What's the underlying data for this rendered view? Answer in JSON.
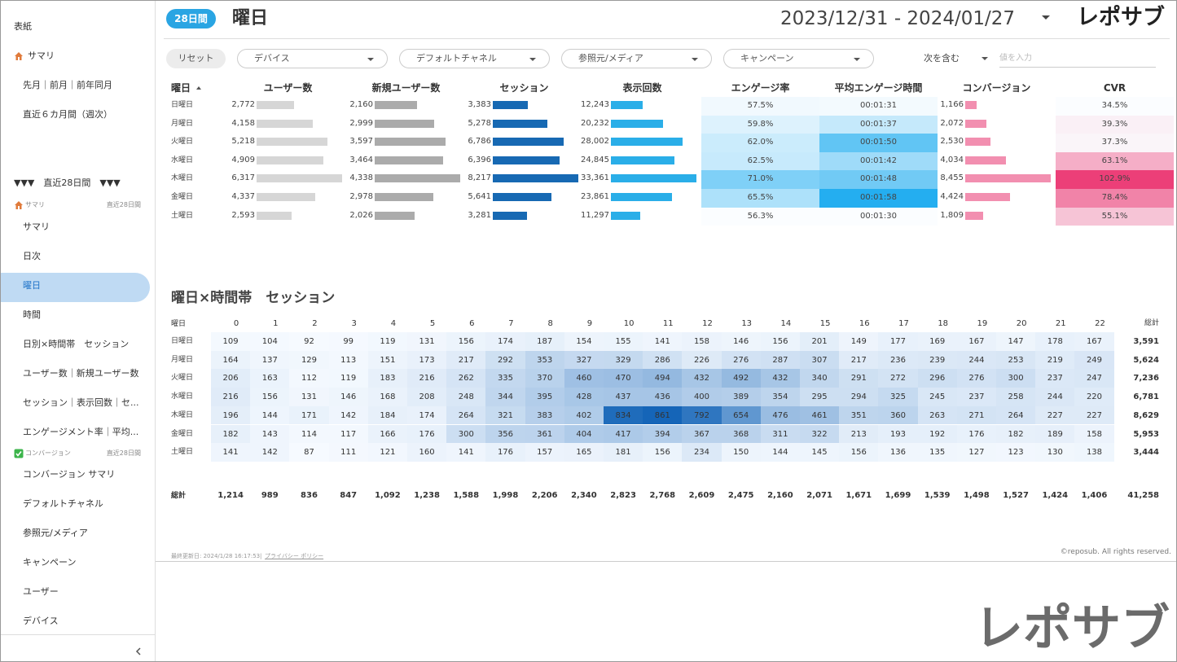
{
  "sidebar": {
    "top_items": [
      "表紙",
      "サマリ",
      "先月｜前月｜前年同月",
      "直近６カ月間（週次）"
    ],
    "range_header": "▼▼▼　直近28日間　▼▼▼",
    "sections": [
      {
        "title": "サマリ",
        "period": "直近28日間",
        "items": [
          "サマリ",
          "日次",
          {
            "label": "曜日",
            "active": true
          },
          "時間",
          "日別×時間帯　セッション",
          "ユーザー数｜新規ユーザー数",
          "セッション｜表示回数｜セ...",
          "エンゲージメント率｜平均..."
        ]
      },
      {
        "title": "コンバージョン",
        "period": "直近28日間",
        "items": [
          "コンバージョン サマリ",
          "デフォルトチャネル",
          "参照元/メディア",
          "キャンペーン",
          "ユーザー",
          "デバイス"
        ]
      }
    ]
  },
  "header": {
    "badge": "28日間",
    "title": "曜日",
    "date_range": "2023/12/31 - 2024/01/27",
    "logo": "レポサブ"
  },
  "filters": {
    "reset": "リセット",
    "dropdowns": [
      "デバイス",
      "デフォルトチャネル",
      "参照元/メディア",
      "キャンペーン"
    ],
    "match": "次を含む",
    "input_placeholder": "値を入力"
  },
  "table": {
    "day_header": "曜日",
    "columns": [
      {
        "label": "ユーザー数",
        "style": "bar",
        "color": "#d6d6d6"
      },
      {
        "label": "新規ユーザー数",
        "style": "bar",
        "color": "#ababab"
      },
      {
        "label": "セッション",
        "style": "bar",
        "color": "#1769b3"
      },
      {
        "label": "表示回数",
        "style": "bar",
        "color": "#2aaee8"
      },
      {
        "label": "エンゲージ率",
        "style": "heat",
        "color": "#7fd0f7"
      },
      {
        "label": "平均エンゲージ時間",
        "style": "heat",
        "color": "#24aef0"
      },
      {
        "label": "コンバージョン",
        "style": "bar",
        "color": "#f28fb0"
      },
      {
        "label": "CVR",
        "style": "heat",
        "color": "#ec3f78"
      }
    ],
    "rows": [
      {
        "day": "日曜日",
        "cells": [
          {
            "value": 2772,
            "label": "2,772"
          },
          {
            "value": 2160,
            "label": "2,160"
          },
          {
            "value": 3383,
            "label": "3,383"
          },
          {
            "value": 12243,
            "label": "12,243"
          },
          {
            "value": 57.5,
            "label": "57.5%"
          },
          {
            "value": 91,
            "label": "00:01:31"
          },
          {
            "value": 1166,
            "label": "1,166"
          },
          {
            "value": 34.5,
            "label": "34.5%"
          }
        ]
      },
      {
        "day": "月曜日",
        "cells": [
          {
            "value": 4158,
            "label": "4,158"
          },
          {
            "value": 2999,
            "label": "2,999"
          },
          {
            "value": 5278,
            "label": "5,278"
          },
          {
            "value": 20232,
            "label": "20,232"
          },
          {
            "value": 59.8,
            "label": "59.8%"
          },
          {
            "value": 97,
            "label": "00:01:37"
          },
          {
            "value": 2072,
            "label": "2,072"
          },
          {
            "value": 39.3,
            "label": "39.3%"
          }
        ]
      },
      {
        "day": "火曜日",
        "cells": [
          {
            "value": 5218,
            "label": "5,218"
          },
          {
            "value": 3597,
            "label": "3,597"
          },
          {
            "value": 6786,
            "label": "6,786"
          },
          {
            "value": 28002,
            "label": "28,002"
          },
          {
            "value": 62.0,
            "label": "62.0%"
          },
          {
            "value": 110,
            "label": "00:01:50"
          },
          {
            "value": 2530,
            "label": "2,530"
          },
          {
            "value": 37.3,
            "label": "37.3%"
          }
        ]
      },
      {
        "day": "水曜日",
        "cells": [
          {
            "value": 4909,
            "label": "4,909"
          },
          {
            "value": 3464,
            "label": "3,464"
          },
          {
            "value": 6396,
            "label": "6,396"
          },
          {
            "value": 24845,
            "label": "24,845"
          },
          {
            "value": 62.5,
            "label": "62.5%"
          },
          {
            "value": 102,
            "label": "00:01:42"
          },
          {
            "value": 4034,
            "label": "4,034"
          },
          {
            "value": 63.1,
            "label": "63.1%"
          }
        ]
      },
      {
        "day": "木曜日",
        "cells": [
          {
            "value": 6317,
            "label": "6,317"
          },
          {
            "value": 4338,
            "label": "4,338"
          },
          {
            "value": 8217,
            "label": "8,217"
          },
          {
            "value": 33361,
            "label": "33,361"
          },
          {
            "value": 71.0,
            "label": "71.0%"
          },
          {
            "value": 108,
            "label": "00:01:48"
          },
          {
            "value": 8455,
            "label": "8,455"
          },
          {
            "value": 102.9,
            "label": "102.9%"
          }
        ]
      },
      {
        "day": "金曜日",
        "cells": [
          {
            "value": 4337,
            "label": "4,337"
          },
          {
            "value": 2978,
            "label": "2,978"
          },
          {
            "value": 5641,
            "label": "5,641"
          },
          {
            "value": 23861,
            "label": "23,861"
          },
          {
            "value": 65.5,
            "label": "65.5%"
          },
          {
            "value": 118,
            "label": "00:01:58"
          },
          {
            "value": 4424,
            "label": "4,424"
          },
          {
            "value": 78.4,
            "label": "78.4%"
          }
        ]
      },
      {
        "day": "土曜日",
        "cells": [
          {
            "value": 2593,
            "label": "2,593"
          },
          {
            "value": 2026,
            "label": "2,026"
          },
          {
            "value": 3281,
            "label": "3,281"
          },
          {
            "value": 11297,
            "label": "11,297"
          },
          {
            "value": 56.3,
            "label": "56.3%"
          },
          {
            "value": 90,
            "label": "00:01:30"
          },
          {
            "value": 1809,
            "label": "1,809"
          },
          {
            "value": 55.1,
            "label": "55.1%"
          }
        ]
      }
    ]
  },
  "heatmap": {
    "title": "曜日×時間帯　セッション",
    "corner": "曜日",
    "hours": [
      0,
      1,
      2,
      3,
      4,
      5,
      6,
      7,
      8,
      9,
      10,
      11,
      12,
      13,
      14,
      15,
      16,
      17,
      18,
      19,
      20,
      21,
      22
    ],
    "total_header": "総計",
    "color": "#1565b8",
    "rows": [
      {
        "day": "日曜日",
        "values": [
          109,
          104,
          92,
          99,
          119,
          131,
          156,
          174,
          187,
          154,
          155,
          141,
          158,
          146,
          156,
          201,
          149,
          177,
          169,
          167,
          147,
          178,
          167
        ],
        "total": "3,591"
      },
      {
        "day": "月曜日",
        "values": [
          164,
          137,
          129,
          113,
          151,
          173,
          217,
          292,
          353,
          327,
          329,
          286,
          226,
          276,
          287,
          307,
          217,
          236,
          239,
          244,
          253,
          219,
          249
        ],
        "total": "5,624"
      },
      {
        "day": "火曜日",
        "values": [
          206,
          163,
          112,
          119,
          183,
          216,
          262,
          335,
          370,
          460,
          470,
          494,
          432,
          492,
          432,
          340,
          291,
          272,
          296,
          276,
          300,
          237,
          247
        ],
        "total": "7,236"
      },
      {
        "day": "水曜日",
        "values": [
          216,
          156,
          131,
          146,
          168,
          208,
          248,
          344,
          395,
          428,
          437,
          436,
          400,
          389,
          354,
          295,
          294,
          325,
          245,
          237,
          258,
          244,
          220
        ],
        "total": "6,781"
      },
      {
        "day": "木曜日",
        "values": [
          196,
          144,
          171,
          142,
          184,
          174,
          264,
          321,
          383,
          402,
          834,
          861,
          792,
          654,
          476,
          461,
          351,
          360,
          263,
          271,
          264,
          227,
          227
        ],
        "total": "8,629"
      },
      {
        "day": "金曜日",
        "values": [
          182,
          143,
          114,
          117,
          166,
          176,
          300,
          356,
          361,
          404,
          417,
          394,
          367,
          368,
          311,
          322,
          213,
          193,
          192,
          176,
          182,
          189,
          158
        ],
        "total": "5,953"
      },
      {
        "day": "土曜日",
        "values": [
          141,
          142,
          87,
          111,
          121,
          160,
          141,
          176,
          157,
          165,
          181,
          156,
          234,
          150,
          144,
          145,
          156,
          136,
          135,
          127,
          123,
          130,
          138
        ],
        "total": "3,444"
      }
    ],
    "total_row": {
      "label": "総計",
      "values": [
        "1,214",
        "989",
        "836",
        "847",
        "1,092",
        "1,238",
        "1,588",
        "1,998",
        "2,206",
        "2,340",
        "2,823",
        "2,768",
        "2,609",
        "2,475",
        "2,160",
        "2,071",
        "1,671",
        "1,699",
        "1,539",
        "1,498",
        "1,527",
        "1,424",
        "1,406"
      ],
      "grand_total": "41,258"
    }
  },
  "footer": {
    "updated": "最終更新日: 2024/1/28 16:17:53",
    "separator": "|",
    "privacy": "プライバシー ポリシー",
    "copyright": "©reposub. All rights reserved."
  },
  "watermark": "レポサブ"
}
